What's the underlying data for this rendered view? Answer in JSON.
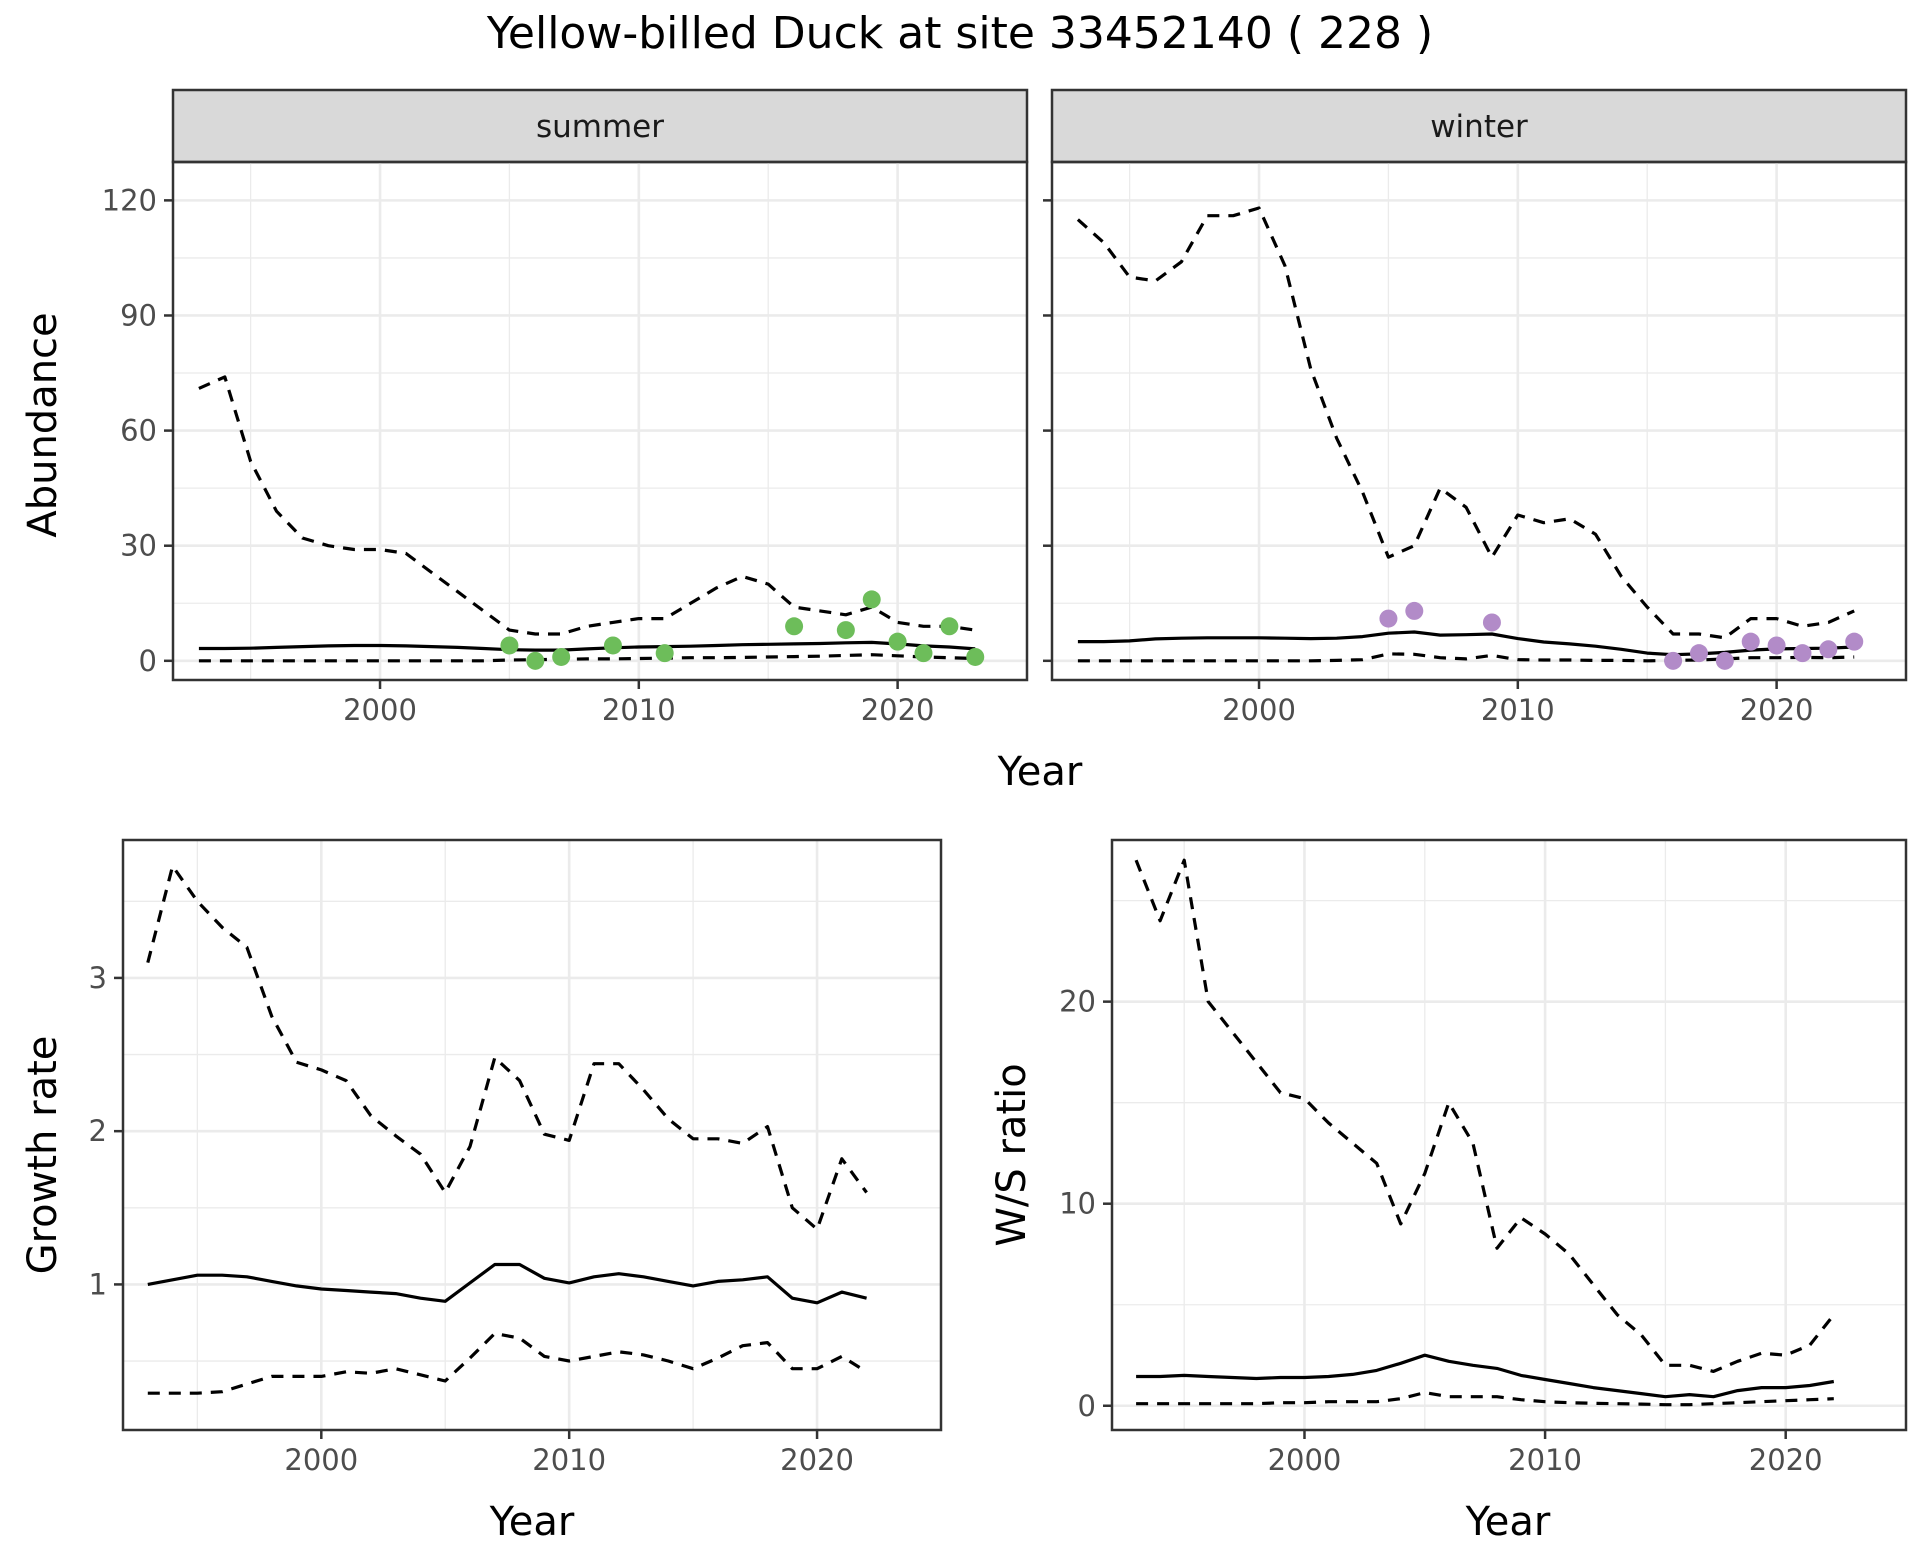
{
  "title": "Yellow-billed Duck at site 33452140 ( 228 )",
  "colors": {
    "summer_points": "#6dbd5a",
    "winter_points": "#b28bc8",
    "line": "#000000",
    "grid": "#ebebeb",
    "strip": "#d9d9d9"
  },
  "abundance_panel": {
    "xlabel": "Year",
    "ylabel": "Abundance",
    "summer_label": "summer",
    "winter_label": "winter"
  },
  "growth_panel": {
    "xlabel": "Year",
    "ylabel": "Growth rate"
  },
  "ratio_panel": {
    "xlabel": "Year",
    "ylabel": "W/S ratio"
  },
  "chart_data": [
    {
      "type": "line",
      "facet": "summer",
      "x": [
        1993,
        1994,
        1995,
        1996,
        1997,
        1998,
        1999,
        2000,
        2001,
        2002,
        2003,
        2004,
        2005,
        2006,
        2007,
        2008,
        2009,
        2010,
        2011,
        2012,
        2013,
        2014,
        2015,
        2016,
        2017,
        2018,
        2019,
        2020,
        2021,
        2022,
        2023
      ],
      "series": [
        {
          "role": "estimate",
          "style": "solid",
          "values": [
            3.2,
            3.2,
            3.3,
            3.5,
            3.7,
            3.9,
            4.0,
            4.0,
            3.9,
            3.7,
            3.5,
            3.2,
            2.9,
            2.8,
            2.8,
            3.1,
            3.4,
            3.6,
            3.7,
            3.8,
            4.0,
            4.2,
            4.3,
            4.4,
            4.5,
            4.7,
            4.8,
            4.4,
            3.9,
            3.6,
            3.1
          ]
        },
        {
          "role": "upper",
          "style": "dashed",
          "values": [
            71,
            74,
            52,
            39,
            32,
            30,
            29,
            29,
            28,
            23,
            18,
            13,
            8,
            7,
            7,
            9,
            10,
            11,
            11,
            15,
            19,
            22,
            20,
            14,
            13,
            12,
            14,
            10,
            9,
            9,
            8
          ]
        },
        {
          "role": "lower",
          "style": "dashed",
          "values": [
            0,
            0,
            0,
            0,
            0,
            0,
            0,
            0,
            0,
            0,
            0,
            0,
            0.2,
            0.3,
            0.4,
            0.5,
            0.5,
            0.6,
            0.7,
            0.8,
            0.8,
            0.9,
            1.0,
            1.1,
            1.2,
            1.4,
            1.6,
            1.3,
            1.0,
            0.8,
            0.6
          ]
        }
      ],
      "points": {
        "x": [
          2005,
          2006,
          2007,
          2009,
          2011,
          2016,
          2018,
          2019,
          2020,
          2021,
          2022,
          2023
        ],
        "y": [
          4,
          0,
          1,
          4,
          2,
          9,
          8,
          16,
          5,
          2,
          9,
          1
        ]
      },
      "xlim": [
        1992,
        2025
      ],
      "ylim": [
        -5,
        130
      ],
      "xticks": [
        2000,
        2010,
        2020
      ],
      "yticks": [
        0,
        30,
        60,
        90,
        120
      ]
    },
    {
      "type": "line",
      "facet": "winter",
      "x": [
        1993,
        1994,
        1995,
        1996,
        1997,
        1998,
        1999,
        2000,
        2001,
        2002,
        2003,
        2004,
        2005,
        2006,
        2007,
        2008,
        2009,
        2010,
        2011,
        2012,
        2013,
        2014,
        2015,
        2016,
        2017,
        2018,
        2019,
        2020,
        2021,
        2022,
        2023
      ],
      "series": [
        {
          "role": "estimate",
          "style": "solid",
          "values": [
            5.0,
            5.0,
            5.2,
            5.7,
            5.9,
            6.0,
            6.0,
            6.0,
            5.9,
            5.8,
            5.9,
            6.3,
            7.2,
            7.5,
            6.7,
            6.8,
            7.0,
            5.8,
            4.9,
            4.4,
            3.8,
            3.0,
            2.0,
            1.6,
            1.8,
            2.2,
            2.8,
            3.1,
            3.2,
            3.3,
            3.6
          ]
        },
        {
          "role": "upper",
          "style": "dashed",
          "values": [
            115,
            109,
            100,
            99,
            104,
            116,
            116,
            118,
            103,
            76,
            58,
            44,
            27,
            30,
            45,
            40,
            27,
            38,
            36,
            37,
            33,
            22,
            14,
            7,
            7,
            6,
            11,
            11,
            9,
            10,
            13
          ]
        },
        {
          "role": "lower",
          "style": "dashed",
          "values": [
            0,
            0,
            0,
            0,
            0,
            0,
            0,
            0,
            0,
            0,
            0.1,
            0.3,
            1.8,
            1.7,
            0.8,
            0.5,
            1.4,
            0.3,
            0.2,
            0.2,
            0.1,
            0.1,
            0,
            0.1,
            0.2,
            0.5,
            0.8,
            0.8,
            0.9,
            0.8,
            1.0
          ]
        }
      ],
      "points": {
        "x": [
          2005,
          2006,
          2009,
          2016,
          2017,
          2018,
          2019,
          2020,
          2021,
          2022,
          2023
        ],
        "y": [
          11,
          13,
          10,
          0,
          2,
          0,
          5,
          4,
          2,
          3,
          5
        ]
      },
      "xlim": [
        1992,
        2025
      ],
      "ylim": [
        -5,
        130
      ],
      "xticks": [
        2000,
        2010,
        2020
      ],
      "yticks": [
        0,
        30,
        60,
        90,
        120
      ]
    },
    {
      "type": "line",
      "panel": "growth rate",
      "x": [
        1993,
        1994,
        1995,
        1996,
        1997,
        1998,
        1999,
        2000,
        2001,
        2002,
        2003,
        2004,
        2005,
        2006,
        2007,
        2008,
        2009,
        2010,
        2011,
        2012,
        2013,
        2014,
        2015,
        2016,
        2017,
        2018,
        2019,
        2020,
        2021,
        2022
      ],
      "series": [
        {
          "role": "estimate",
          "style": "solid",
          "values": [
            1.0,
            1.03,
            1.06,
            1.06,
            1.05,
            1.02,
            0.99,
            0.97,
            0.96,
            0.95,
            0.94,
            0.91,
            0.89,
            1.01,
            1.13,
            1.13,
            1.04,
            1.01,
            1.05,
            1.07,
            1.05,
            1.02,
            0.99,
            1.02,
            1.03,
            1.05,
            0.91,
            0.88,
            0.95,
            0.91
          ]
        },
        {
          "role": "upper",
          "style": "dashed",
          "values": [
            3.1,
            3.73,
            3.5,
            3.33,
            3.2,
            2.75,
            2.45,
            2.4,
            2.33,
            2.1,
            1.97,
            1.85,
            1.6,
            1.9,
            2.48,
            2.33,
            1.98,
            1.94,
            2.44,
            2.44,
            2.27,
            2.08,
            1.95,
            1.95,
            1.92,
            2.03,
            1.5,
            1.36,
            1.82,
            1.6
          ]
        },
        {
          "role": "lower",
          "style": "dashed",
          "values": [
            0.29,
            0.29,
            0.29,
            0.3,
            0.35,
            0.4,
            0.4,
            0.4,
            0.43,
            0.42,
            0.45,
            0.41,
            0.37,
            0.52,
            0.68,
            0.65,
            0.53,
            0.5,
            0.53,
            0.56,
            0.54,
            0.5,
            0.45,
            0.52,
            0.6,
            0.62,
            0.45,
            0.45,
            0.53,
            0.43
          ]
        }
      ],
      "xlim": [
        1992,
        2025
      ],
      "ylim": [
        0.05,
        3.9
      ],
      "xticks": [
        2000,
        2010,
        2020
      ],
      "yticks": [
        1,
        2,
        3
      ]
    },
    {
      "type": "line",
      "panel": "W/S ratio",
      "x": [
        1993,
        1994,
        1995,
        1996,
        1997,
        1998,
        1999,
        2000,
        2001,
        2002,
        2003,
        2004,
        2005,
        2006,
        2007,
        2008,
        2009,
        2010,
        2011,
        2012,
        2013,
        2014,
        2015,
        2016,
        2017,
        2018,
        2019,
        2020,
        2021,
        2022
      ],
      "series": [
        {
          "role": "estimate",
          "style": "solid",
          "values": [
            1.45,
            1.45,
            1.5,
            1.45,
            1.4,
            1.35,
            1.4,
            1.4,
            1.45,
            1.55,
            1.75,
            2.1,
            2.5,
            2.2,
            2.0,
            1.85,
            1.5,
            1.3,
            1.1,
            0.9,
            0.75,
            0.6,
            0.45,
            0.55,
            0.45,
            0.75,
            0.9,
            0.9,
            1.0,
            1.2
          ]
        },
        {
          "role": "upper",
          "style": "dashed",
          "values": [
            27,
            24,
            27,
            20,
            18.5,
            17,
            15.5,
            15.2,
            14,
            13,
            12,
            9,
            11.5,
            15,
            13,
            7.8,
            9.3,
            8.5,
            7.5,
            6,
            4.5,
            3.5,
            2,
            2,
            1.7,
            2.2,
            2.6,
            2.5,
            3,
            4.5
          ]
        },
        {
          "role": "lower",
          "style": "dashed",
          "values": [
            0.1,
            0.1,
            0.1,
            0.1,
            0.1,
            0.1,
            0.15,
            0.15,
            0.2,
            0.2,
            0.2,
            0.35,
            0.65,
            0.45,
            0.45,
            0.45,
            0.3,
            0.2,
            0.15,
            0.12,
            0.1,
            0.08,
            0.05,
            0.05,
            0.1,
            0.15,
            0.2,
            0.25,
            0.3,
            0.35
          ]
        }
      ],
      "xlim": [
        1992,
        2025
      ],
      "ylim": [
        -1.2,
        28
      ],
      "xticks": [
        2000,
        2010,
        2020
      ],
      "yticks": [
        0,
        10,
        20
      ]
    }
  ]
}
